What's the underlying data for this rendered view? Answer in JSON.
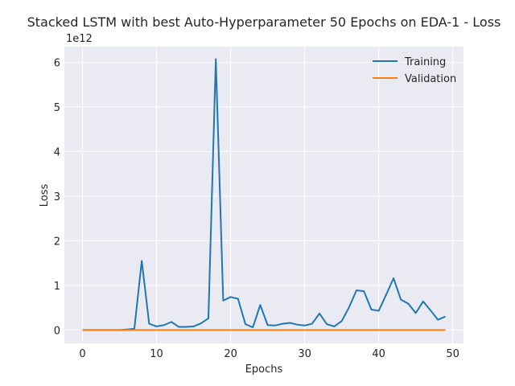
{
  "chart_data": {
    "type": "line",
    "title": "Stacked LSTM with best Auto-Hyperparameter 50 Epochs on EDA-1 - Loss",
    "xlabel": "Epochs",
    "ylabel": "Loss",
    "y_offset_label": "1e12",
    "xlim": [
      -2.45,
      51.45
    ],
    "ylim": [
      -0.3,
      6.35
    ],
    "xticks": [
      0,
      10,
      20,
      30,
      40,
      50
    ],
    "yticks": [
      0,
      1,
      2,
      3,
      4,
      5,
      6
    ],
    "grid": true,
    "legend": "top-right",
    "x": [
      0,
      1,
      2,
      3,
      4,
      5,
      6,
      7,
      8,
      9,
      10,
      11,
      12,
      13,
      14,
      15,
      16,
      17,
      18,
      19,
      20,
      21,
      22,
      23,
      24,
      25,
      26,
      27,
      28,
      29,
      30,
      31,
      32,
      33,
      34,
      35,
      36,
      37,
      38,
      39,
      40,
      41,
      42,
      43,
      44,
      45,
      46,
      47,
      48,
      49
    ],
    "series": [
      {
        "name": "Training",
        "color": "#1f77b4",
        "values": [
          0.0,
          0.0,
          0.0,
          0.0,
          0.0,
          0.0,
          0.01,
          0.03,
          1.55,
          0.14,
          0.08,
          0.11,
          0.18,
          0.07,
          0.07,
          0.08,
          0.15,
          0.26,
          6.07,
          0.66,
          0.74,
          0.7,
          0.13,
          0.06,
          0.56,
          0.11,
          0.1,
          0.14,
          0.16,
          0.12,
          0.1,
          0.14,
          0.37,
          0.13,
          0.08,
          0.2,
          0.51,
          0.89,
          0.87,
          0.46,
          0.43,
          0.79,
          1.16,
          0.68,
          0.59,
          0.38,
          0.64,
          0.44,
          0.23,
          0.3
        ]
      },
      {
        "name": "Validation",
        "color": "#ff7f0e",
        "values": [
          0,
          0,
          0,
          0,
          0,
          0,
          0,
          0,
          0,
          0,
          0,
          0,
          0,
          0,
          0,
          0,
          0,
          0,
          0,
          0,
          0,
          0,
          0,
          0,
          0,
          0,
          0,
          0,
          0,
          0,
          0,
          0,
          0,
          0,
          0,
          0,
          0,
          0,
          0,
          0,
          0,
          0,
          0,
          0,
          0,
          0,
          0,
          0,
          0,
          0
        ]
      }
    ]
  }
}
